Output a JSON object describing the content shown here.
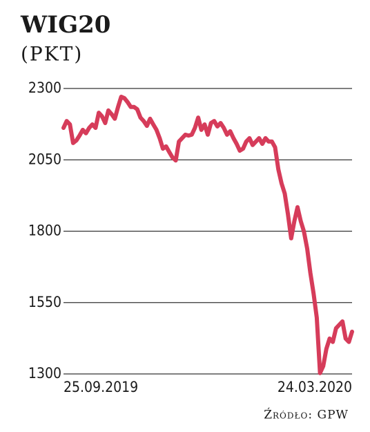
{
  "chart_data": {
    "type": "line",
    "title": "WIG20",
    "subtitle": "(PKT)",
    "source": "Źródło: GPW",
    "categories": [
      "25.09.2019",
      null,
      null,
      null,
      null,
      null,
      null,
      null,
      null,
      null,
      null,
      null,
      null,
      null,
      null,
      null,
      null,
      null,
      null,
      null,
      null,
      null,
      null,
      null,
      null,
      null,
      null,
      null,
      null,
      null,
      null,
      null,
      null,
      null,
      null,
      null,
      null,
      null,
      null,
      null,
      null,
      null,
      null,
      null,
      null,
      null,
      null,
      null,
      null,
      null,
      null,
      null,
      null,
      null,
      null,
      null,
      null,
      null,
      null,
      null,
      null,
      null,
      null,
      null,
      null,
      null,
      null,
      null,
      null,
      null,
      null,
      null,
      null,
      null,
      null,
      null,
      null,
      null,
      null,
      null,
      null,
      null,
      null,
      null,
      null,
      null,
      null,
      null,
      null,
      null,
      "24.03.2020"
    ],
    "values": [
      2162,
      2186,
      2174,
      2109,
      2118,
      2135,
      2155,
      2143,
      2162,
      2174,
      2162,
      2215,
      2203,
      2179,
      2223,
      2210,
      2194,
      2235,
      2271,
      2266,
      2252,
      2235,
      2235,
      2227,
      2198,
      2186,
      2169,
      2194,
      2174,
      2155,
      2126,
      2089,
      2097,
      2077,
      2058,
      2048,
      2114,
      2126,
      2138,
      2135,
      2138,
      2162,
      2198,
      2155,
      2174,
      2138,
      2179,
      2186,
      2167,
      2179,
      2162,
      2138,
      2150,
      2126,
      2106,
      2082,
      2089,
      2114,
      2126,
      2102,
      2114,
      2126,
      2106,
      2126,
      2114,
      2114,
      2094,
      2017,
      1968,
      1932,
      1860,
      1775,
      1835,
      1884,
      1835,
      1799,
      1739,
      1654,
      1581,
      1497,
      1303,
      1327,
      1388,
      1424,
      1412,
      1460,
      1472,
      1484,
      1424,
      1412,
      1448
    ],
    "color": "#d63c5a",
    "ylim": [
      1300,
      2300
    ],
    "yticks": [
      1300,
      1550,
      1800,
      2050,
      2300
    ],
    "grid": true
  }
}
